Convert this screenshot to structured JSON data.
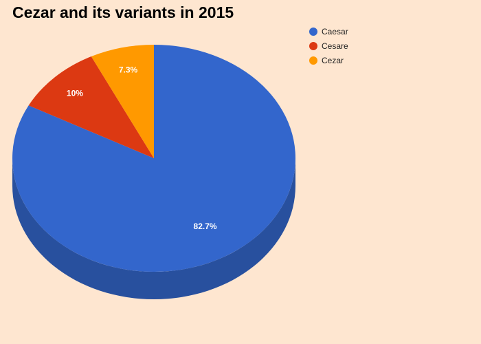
{
  "chart_data": {
    "type": "pie",
    "title": "Cezar and its variants in 2015",
    "three_d": true,
    "legend_position": "top-right",
    "series": [
      {
        "name": "Caesar",
        "value": 82.7,
        "label": "82.7%",
        "color": "#3366cc",
        "side_color": "#28509e"
      },
      {
        "name": "Cesare",
        "value": 10,
        "label": "10%",
        "color": "#dc3912",
        "side_color": "#a92b0e"
      },
      {
        "name": "Cezar",
        "value": 7.3,
        "label": "7.3%",
        "color": "#ff9900",
        "side_color": "#c77700"
      }
    ]
  }
}
